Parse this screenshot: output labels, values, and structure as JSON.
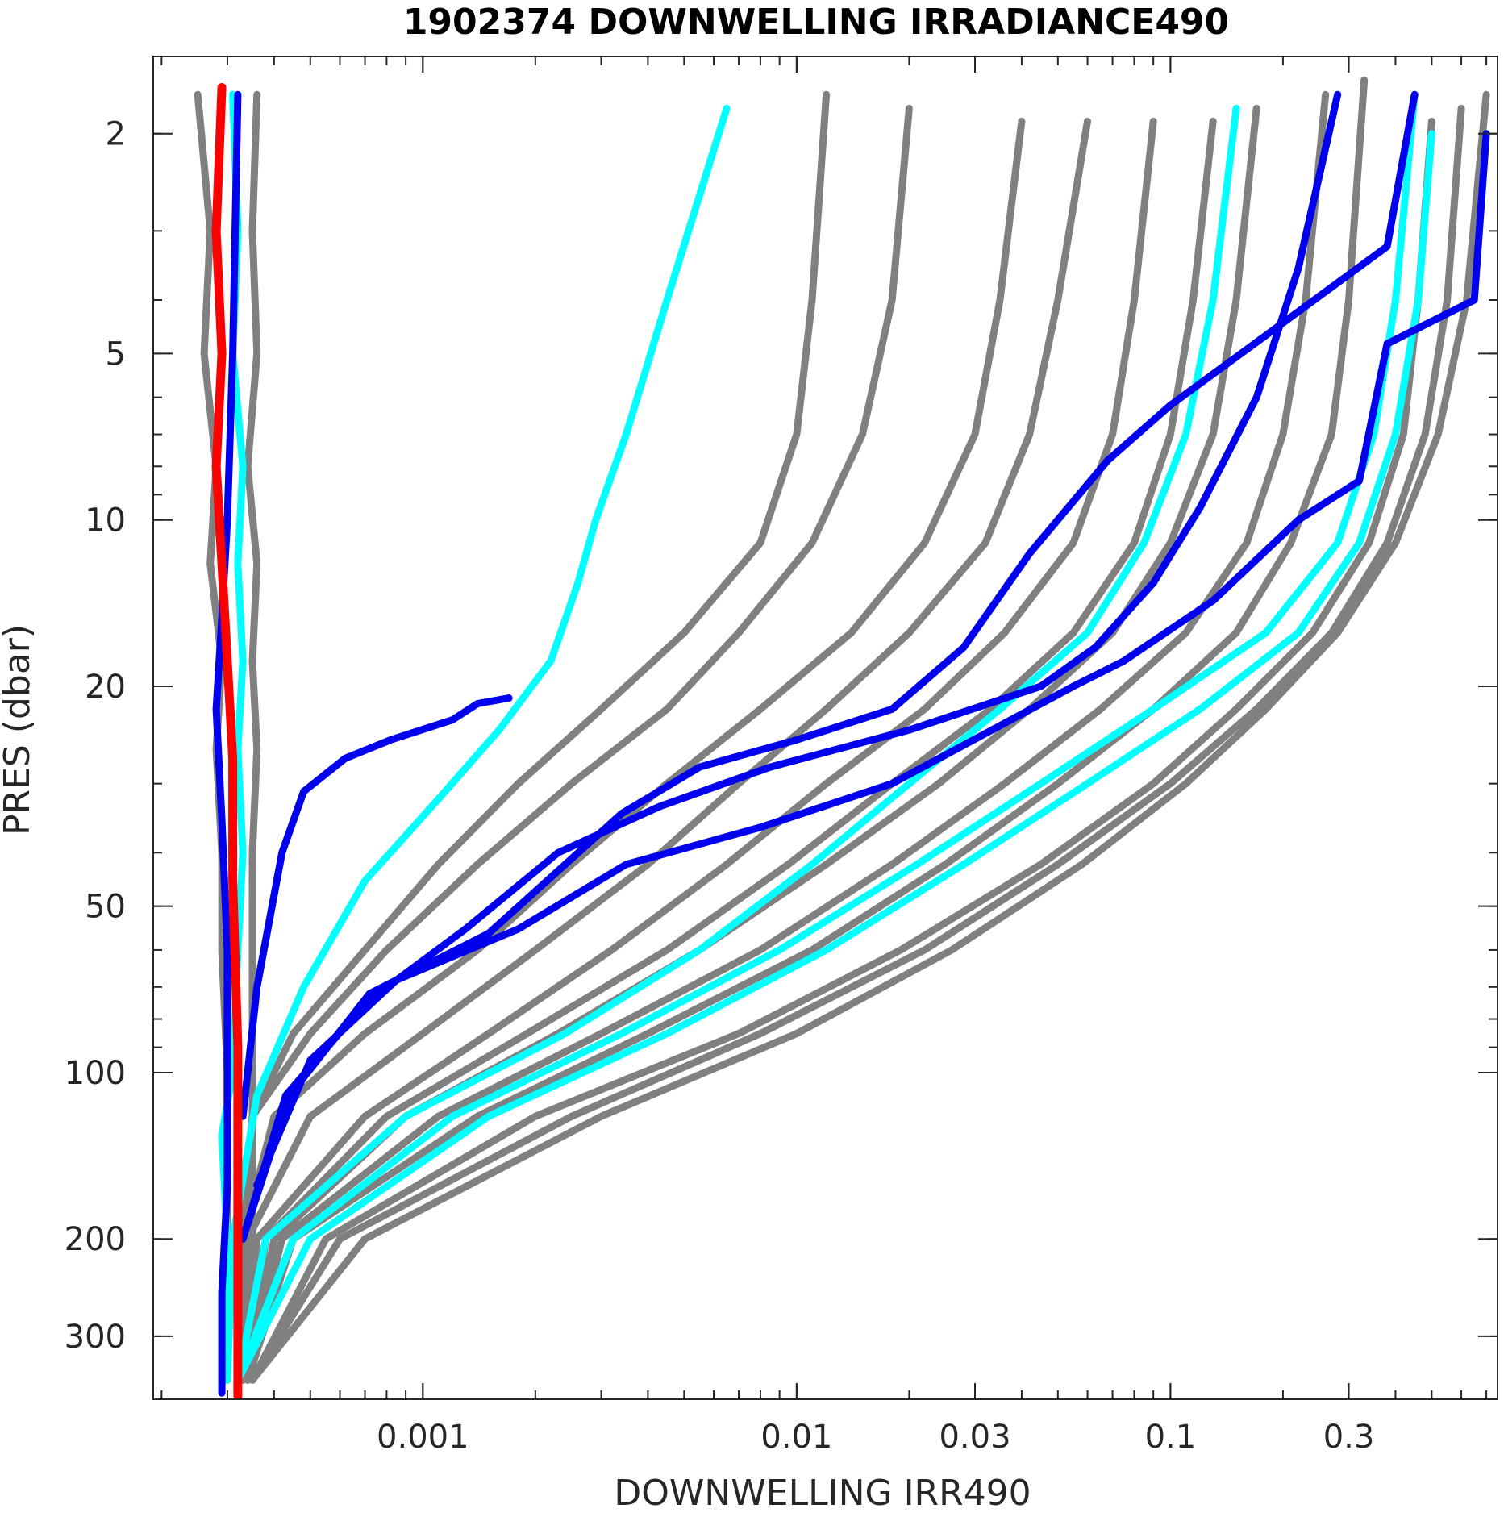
{
  "chart_data": {
    "type": "line",
    "title": "1902374  DOWNWELLING IRRADIANCE490",
    "xlabel": "DOWNWELLING IRR490",
    "ylabel": "PRES (dbar)",
    "xscale": "log",
    "yscale": "log",
    "y_reversed": true,
    "xlim": [
      0.00019,
      0.75
    ],
    "ylim": [
      1.45,
      390
    ],
    "x_ticks": [
      {
        "value": 0.001,
        "label": "0.001"
      },
      {
        "value": 0.01,
        "label": "0.01"
      },
      {
        "value": 0.03,
        "label": "0.03"
      },
      {
        "value": 0.1,
        "label": "0.1"
      },
      {
        "value": 0.3,
        "label": "0.3"
      }
    ],
    "y_ticks": [
      {
        "value": 2,
        "label": "2"
      },
      {
        "value": 5,
        "label": "5"
      },
      {
        "value": 10,
        "label": "10"
      },
      {
        "value": 20,
        "label": "20"
      },
      {
        "value": 50,
        "label": "50"
      },
      {
        "value": 100,
        "label": "100"
      },
      {
        "value": 200,
        "label": "200"
      },
      {
        "value": 300,
        "label": "300"
      }
    ],
    "grid": false,
    "legend": "none",
    "colors": {
      "gray": "#808080",
      "cyan": "#00ffff",
      "blue": "#0000ee",
      "red": "#ff0000"
    },
    "series": [
      {
        "color": "gray",
        "x": [
          0.02,
          0.018,
          0.015,
          0.011,
          0.007,
          0.0045,
          0.0025,
          0.0014,
          0.0008,
          0.0005,
          0.00035,
          0.00033,
          0.00033
        ],
        "y": [
          1.8,
          4,
          7,
          11,
          16,
          22,
          30,
          42,
          60,
          85,
          120,
          200,
          360
        ]
      },
      {
        "color": "gray",
        "x": [
          0.012,
          0.011,
          0.01,
          0.008,
          0.005,
          0.003,
          0.0018,
          0.0011,
          0.0007,
          0.00045,
          0.00035,
          0.00033,
          0.00033
        ],
        "y": [
          1.7,
          4,
          7,
          11,
          16,
          22,
          30,
          42,
          60,
          85,
          120,
          200,
          360
        ]
      },
      {
        "color": "gray",
        "x": [
          0.04,
          0.035,
          0.03,
          0.022,
          0.014,
          0.008,
          0.0045,
          0.0025,
          0.0014,
          0.0007,
          0.0004,
          0.00033,
          0.00033
        ],
        "y": [
          1.9,
          4,
          7,
          11,
          16,
          22,
          30,
          42,
          60,
          85,
          120,
          200,
          360
        ]
      },
      {
        "color": "gray",
        "x": [
          0.06,
          0.05,
          0.042,
          0.032,
          0.02,
          0.012,
          0.007,
          0.004,
          0.002,
          0.001,
          0.0005,
          0.00034,
          0.00033
        ],
        "y": [
          1.9,
          4,
          7,
          11,
          16,
          22,
          30,
          42,
          60,
          85,
          120,
          200,
          360
        ]
      },
      {
        "color": "gray",
        "x": [
          0.09,
          0.08,
          0.07,
          0.055,
          0.036,
          0.022,
          0.012,
          0.0065,
          0.0032,
          0.0015,
          0.0007,
          0.00036,
          0.00033
        ],
        "y": [
          1.9,
          4,
          7,
          11,
          16,
          22,
          30,
          42,
          60,
          85,
          120,
          200,
          360
        ]
      },
      {
        "color": "gray",
        "x": [
          0.13,
          0.115,
          0.1,
          0.08,
          0.055,
          0.033,
          0.018,
          0.0095,
          0.0045,
          0.0019,
          0.0008,
          0.00038,
          0.00034
        ],
        "y": [
          1.9,
          4,
          7,
          11,
          16,
          22,
          30,
          42,
          60,
          85,
          120,
          200,
          360
        ]
      },
      {
        "color": "gray",
        "x": [
          0.17,
          0.15,
          0.13,
          0.1,
          0.07,
          0.042,
          0.024,
          0.012,
          0.0055,
          0.0023,
          0.0009,
          0.0004,
          0.00034
        ],
        "y": [
          1.8,
          4,
          7,
          11,
          16,
          22,
          30,
          42,
          60,
          85,
          120,
          200,
          360
        ]
      },
      {
        "color": "gray",
        "x": [
          0.26,
          0.23,
          0.2,
          0.16,
          0.11,
          0.065,
          0.036,
          0.018,
          0.008,
          0.003,
          0.0011,
          0.00042,
          0.00034
        ],
        "y": [
          1.7,
          4,
          7,
          11,
          16,
          22,
          30,
          42,
          60,
          85,
          120,
          200,
          360
        ]
      },
      {
        "color": "gray",
        "x": [
          0.33,
          0.3,
          0.27,
          0.21,
          0.15,
          0.09,
          0.05,
          0.025,
          0.011,
          0.004,
          0.0014,
          0.00045,
          0.00034
        ],
        "y": [
          1.6,
          4,
          7,
          11,
          16,
          22,
          30,
          42,
          60,
          85,
          120,
          200,
          360
        ]
      },
      {
        "color": "gray",
        "x": [
          0.6,
          0.55,
          0.48,
          0.38,
          0.27,
          0.17,
          0.1,
          0.05,
          0.022,
          0.008,
          0.0025,
          0.0006,
          0.00035
        ],
        "y": [
          1.8,
          4,
          7,
          11,
          16,
          22,
          30,
          42,
          60,
          85,
          120,
          200,
          360
        ]
      },
      {
        "color": "gray",
        "x": [
          0.7,
          0.62,
          0.52,
          0.4,
          0.28,
          0.18,
          0.11,
          0.058,
          0.026,
          0.01,
          0.003,
          0.0007,
          0.00035
        ],
        "y": [
          1.7,
          4,
          7,
          11,
          16,
          22,
          30,
          42,
          60,
          85,
          120,
          200,
          360
        ]
      },
      {
        "color": "gray",
        "x": [
          0.5,
          0.46,
          0.42,
          0.34,
          0.24,
          0.15,
          0.09,
          0.045,
          0.019,
          0.007,
          0.002,
          0.00055,
          0.00035
        ],
        "y": [
          1.9,
          4,
          7,
          11,
          16,
          22,
          30,
          42,
          60,
          85,
          120,
          200,
          360
        ]
      },
      {
        "color": "gray",
        "x": [
          0.00025,
          0.00027,
          0.00026,
          0.00028,
          0.00027,
          0.00029,
          0.00028,
          0.00029,
          0.00029,
          0.0003,
          0.0003,
          0.0003
        ],
        "y": [
          1.7,
          3,
          5,
          8,
          12,
          18,
          26,
          40,
          60,
          100,
          180,
          360
        ]
      },
      {
        "color": "gray",
        "x": [
          0.00036,
          0.00035,
          0.00036,
          0.00034,
          0.00036,
          0.00035,
          0.00036,
          0.00035,
          0.00035,
          0.00035,
          0.00035,
          0.00035
        ],
        "y": [
          1.7,
          3,
          5,
          8,
          12,
          18,
          26,
          40,
          60,
          100,
          180,
          360
        ]
      },
      {
        "color": "cyan",
        "x": [
          0.0065,
          0.0045,
          0.0035,
          0.0029,
          0.0026,
          0.0022,
          0.0016,
          0.0011,
          0.0007,
          0.00048,
          0.00036,
          0.00031,
          0.0003
        ],
        "y": [
          1.8,
          4,
          7,
          10,
          13,
          18,
          24,
          32,
          45,
          70,
          110,
          200,
          360
        ]
      },
      {
        "color": "cyan",
        "x": [
          0.15,
          0.13,
          0.11,
          0.085,
          0.06,
          0.035,
          0.02,
          0.011,
          0.0055,
          0.0024,
          0.0009,
          0.00038,
          0.00032
        ],
        "y": [
          1.8,
          4,
          7,
          11,
          16,
          22,
          30,
          42,
          60,
          85,
          120,
          200,
          360
        ]
      },
      {
        "color": "cyan",
        "x": [
          0.45,
          0.4,
          0.35,
          0.28,
          0.18,
          0.09,
          0.045,
          0.021,
          0.009,
          0.0034,
          0.0012,
          0.00045,
          0.00032
        ],
        "y": [
          1.7,
          4,
          7,
          11,
          16,
          22,
          30,
          42,
          60,
          85,
          120,
          200,
          360
        ]
      },
      {
        "color": "cyan",
        "x": [
          0.5,
          0.46,
          0.4,
          0.32,
          0.22,
          0.12,
          0.06,
          0.028,
          0.012,
          0.0045,
          0.0015,
          0.0005,
          0.00032
        ],
        "y": [
          2.0,
          4,
          7,
          11,
          16,
          22,
          30,
          42,
          60,
          85,
          120,
          200,
          360
        ]
      },
      {
        "color": "cyan",
        "x": [
          0.00031,
          0.00032,
          0.00031,
          0.00033,
          0.00032,
          0.00033,
          0.00032,
          0.00033,
          0.00032,
          0.00031,
          0.00029,
          0.0003,
          0.0003
        ],
        "y": [
          1.7,
          3,
          5,
          8,
          12,
          18,
          26,
          40,
          60,
          100,
          130,
          200,
          360
        ]
      },
      {
        "color": "blue",
        "x": [
          0.00032,
          0.00031,
          0.0003,
          0.00029,
          0.00028,
          0.00029,
          0.0003,
          0.0003,
          0.0003,
          0.00029,
          0.00029
        ],
        "y": [
          1.7,
          5,
          10,
          15,
          22,
          35,
          60,
          100,
          160,
          250,
          380
        ]
      },
      {
        "color": "blue",
        "x": [
          0.28,
          0.22,
          0.17,
          0.12,
          0.09,
          0.063,
          0.045,
          0.02,
          0.0085,
          0.0043,
          0.0023,
          0.0013,
          0.0007,
          0.00043,
          0.00033
        ],
        "y": [
          1.7,
          3.5,
          6,
          9.5,
          13,
          17,
          20,
          24,
          28,
          33,
          40,
          55,
          75,
          110,
          200
        ]
      },
      {
        "color": "blue",
        "x": [
          0.45,
          0.38,
          0.2,
          0.1,
          0.068,
          0.042,
          0.028,
          0.018,
          0.01,
          0.0055,
          0.0034,
          0.0015,
          0.00072,
          0.00044,
          0.00033
        ],
        "y": [
          1.7,
          3.2,
          4.4,
          6.2,
          7.8,
          11.5,
          17,
          22,
          25,
          28,
          34,
          56,
          72,
          110,
          200
        ]
      },
      {
        "color": "blue",
        "x": [
          0.7,
          0.65,
          0.38,
          0.32,
          0.22,
          0.13,
          0.075,
          0.055,
          0.018,
          0.008,
          0.0035,
          0.0018,
          0.00085,
          0.0005,
          0.00036
        ],
        "y": [
          2.0,
          4.0,
          4.8,
          8.5,
          10,
          14,
          18,
          20,
          30,
          36,
          42,
          55,
          68,
          95,
          160
        ]
      },
      {
        "color": "blue",
        "x": [
          0.0017,
          0.0014,
          0.0012,
          0.00082,
          0.00062,
          0.00048,
          0.00042,
          0.00036,
          0.00033
        ],
        "y": [
          21,
          21.5,
          23,
          25,
          27,
          31,
          40,
          70,
          120
        ]
      },
      {
        "color": "red",
        "x": [
          0.00029,
          0.00028,
          0.00029,
          0.00028,
          0.00029,
          0.0003,
          0.00031,
          0.00031,
          0.00032,
          0.00032,
          0.00032
        ],
        "y": [
          1.65,
          3,
          5,
          8,
          12,
          18,
          27,
          45,
          90,
          180,
          385
        ]
      }
    ]
  }
}
